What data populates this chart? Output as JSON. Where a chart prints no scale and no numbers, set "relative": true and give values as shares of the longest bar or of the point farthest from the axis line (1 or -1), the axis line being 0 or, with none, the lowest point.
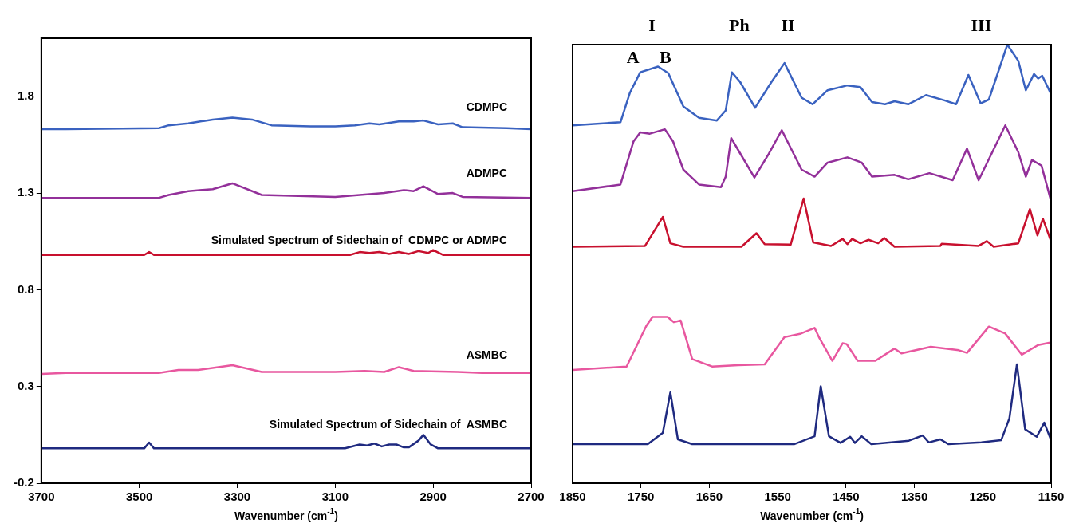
{
  "chart_data": [
    {
      "type": "line",
      "xlabel": "Wavenumber (cm$^{-1}$)",
      "xlim": [
        3700,
        2700
      ],
      "xticks": [
        3700,
        3500,
        3300,
        3100,
        2900,
        2700
      ],
      "ylim": [
        -0.2,
        2.1
      ],
      "yticks": [
        -0.2,
        0.3,
        0.8,
        1.3,
        1.8
      ],
      "grid": false,
      "marker": "none",
      "line_style": "solid",
      "series": [
        {
          "name": "CDMPC",
          "color": "#3a62c0",
          "x": [
            3700,
            3650,
            3460,
            3440,
            3400,
            3350,
            3310,
            3270,
            3230,
            3150,
            3100,
            3060,
            3030,
            3010,
            2970,
            2940,
            2920,
            2890,
            2860,
            2840,
            2750,
            2700
          ],
          "values": [
            1.63,
            1.63,
            1.635,
            1.65,
            1.66,
            1.68,
            1.69,
            1.68,
            1.65,
            1.645,
            1.645,
            1.65,
            1.66,
            1.655,
            1.67,
            1.67,
            1.675,
            1.655,
            1.66,
            1.64,
            1.635,
            1.63
          ]
        },
        {
          "name": "ADMPC",
          "color": "#93309a",
          "x": [
            3700,
            3460,
            3440,
            3400,
            3350,
            3310,
            3250,
            3100,
            3050,
            3000,
            2960,
            2940,
            2920,
            2890,
            2860,
            2840,
            2700
          ],
          "values": [
            1.275,
            1.275,
            1.29,
            1.31,
            1.32,
            1.35,
            1.29,
            1.28,
            1.29,
            1.3,
            1.315,
            1.31,
            1.335,
            1.295,
            1.3,
            1.28,
            1.275
          ]
        },
        {
          "name": "Simulated Spectrum of Sidechain of  CDMPC or ADMPC",
          "color": "#c8102e",
          "x": [
            3700,
            3490,
            3480,
            3470,
            3070,
            3050,
            3030,
            3010,
            2990,
            2970,
            2950,
            2930,
            2910,
            2900,
            2880,
            2700
          ],
          "values": [
            0.98,
            0.98,
            0.995,
            0.98,
            0.98,
            0.995,
            0.99,
            0.995,
            0.985,
            0.995,
            0.985,
            1.0,
            0.99,
            1.005,
            0.98,
            0.98
          ]
        },
        {
          "name": "ASMBC",
          "color": "#e8579f",
          "x": [
            3700,
            3650,
            3460,
            3420,
            3380,
            3310,
            3250,
            3100,
            3040,
            3000,
            2970,
            2940,
            2850,
            2800,
            2700
          ],
          "values": [
            0.365,
            0.37,
            0.37,
            0.385,
            0.385,
            0.41,
            0.375,
            0.375,
            0.38,
            0.375,
            0.4,
            0.38,
            0.375,
            0.37,
            0.37
          ]
        },
        {
          "name": "Simulated Spectrum of Sidechain of  ASMBC",
          "color": "#1f2a80",
          "x": [
            3700,
            3490,
            3480,
            3470,
            3080,
            3050,
            3035,
            3020,
            3005,
            2990,
            2975,
            2960,
            2950,
            2930,
            2920,
            2905,
            2890,
            2700
          ],
          "values": [
            -0.02,
            -0.02,
            0.01,
            -0.02,
            -0.02,
            0.0,
            -0.005,
            0.005,
            -0.01,
            0.0,
            0.0,
            -0.015,
            -0.015,
            0.02,
            0.05,
            0.0,
            -0.02,
            -0.02
          ]
        }
      ]
    },
    {
      "type": "line",
      "xlabel": "Wavenumber (cm$^{-1}$)",
      "xlim": [
        1850,
        1150
      ],
      "xticks": [
        1850,
        1750,
        1650,
        1550,
        1450,
        1350,
        1250,
        1150
      ],
      "relative": true,
      "tick_labels": "x",
      "grid": false,
      "marker": "none",
      "line_style": "solid",
      "annotations": [
        "I",
        "Ph",
        "II",
        "III",
        "A",
        "B"
      ],
      "series": [
        {
          "color": "#3a62c0",
          "x": [
            1850,
            1780,
            1766,
            1751,
            1725,
            1710,
            1688,
            1665,
            1639,
            1626,
            1617,
            1605,
            1583,
            1559,
            1540,
            1515,
            1499,
            1477,
            1448,
            1429,
            1412,
            1393,
            1379,
            1359,
            1333,
            1306,
            1289,
            1271,
            1253,
            1241,
            1214,
            1198,
            1187,
            1175,
            1169,
            1163,
            1150
          ],
          "values": [
            0.816,
            0.823,
            0.891,
            0.937,
            0.95,
            0.935,
            0.859,
            0.833,
            0.827,
            0.85,
            0.937,
            0.915,
            0.856,
            0.915,
            0.958,
            0.879,
            0.864,
            0.896,
            0.907,
            0.903,
            0.869,
            0.864,
            0.871,
            0.864,
            0.885,
            0.873,
            0.864,
            0.931,
            0.866,
            0.875,
            1.0,
            0.963,
            0.896,
            0.933,
            0.923,
            0.929,
            0.887
          ]
        },
        {
          "color": "#93309a",
          "x": [
            1850,
            1780,
            1761,
            1751,
            1737,
            1715,
            1703,
            1688,
            1665,
            1633,
            1626,
            1618,
            1606,
            1584,
            1563,
            1544,
            1515,
            1496,
            1477,
            1448,
            1427,
            1412,
            1379,
            1359,
            1328,
            1294,
            1273,
            1256,
            1217,
            1198,
            1187,
            1178,
            1164,
            1150
          ],
          "values": [
            0.666,
            0.681,
            0.779,
            0.8,
            0.797,
            0.807,
            0.779,
            0.715,
            0.681,
            0.675,
            0.699,
            0.787,
            0.755,
            0.697,
            0.751,
            0.805,
            0.715,
            0.699,
            0.731,
            0.743,
            0.731,
            0.699,
            0.703,
            0.693,
            0.707,
            0.691,
            0.763,
            0.691,
            0.816,
            0.755,
            0.699,
            0.737,
            0.724,
            0.643
          ]
        },
        {
          "color": "#c8102e",
          "x": [
            1850,
            1744,
            1718,
            1707,
            1688,
            1603,
            1581,
            1569,
            1531,
            1512,
            1498,
            1472,
            1455,
            1448,
            1441,
            1429,
            1417,
            1403,
            1394,
            1379,
            1312,
            1310,
            1256,
            1244,
            1234,
            1198,
            1181,
            1170,
            1162,
            1150
          ],
          "values": [
            0.539,
            0.541,
            0.607,
            0.547,
            0.539,
            0.539,
            0.57,
            0.545,
            0.544,
            0.649,
            0.549,
            0.541,
            0.557,
            0.545,
            0.557,
            0.547,
            0.555,
            0.547,
            0.559,
            0.539,
            0.541,
            0.546,
            0.541,
            0.552,
            0.539,
            0.547,
            0.625,
            0.565,
            0.603,
            0.551
          ]
        },
        {
          "color": "#e8579f",
          "x": [
            1850,
            1771,
            1742,
            1733,
            1711,
            1702,
            1692,
            1675,
            1646,
            1608,
            1569,
            1540,
            1516,
            1496,
            1489,
            1470,
            1455,
            1449,
            1433,
            1407,
            1379,
            1369,
            1326,
            1285,
            1273,
            1241,
            1217,
            1193,
            1169,
            1150
          ],
          "values": [
            0.258,
            0.266,
            0.359,
            0.379,
            0.379,
            0.367,
            0.371,
            0.283,
            0.266,
            0.269,
            0.271,
            0.333,
            0.341,
            0.354,
            0.331,
            0.279,
            0.319,
            0.317,
            0.279,
            0.279,
            0.307,
            0.296,
            0.311,
            0.303,
            0.297,
            0.357,
            0.341,
            0.293,
            0.315,
            0.321
          ]
        },
        {
          "color": "#1f2a80",
          "x": [
            1850,
            1740,
            1718,
            1707,
            1696,
            1675,
            1526,
            1496,
            1487,
            1475,
            1458,
            1444,
            1437,
            1427,
            1413,
            1358,
            1338,
            1329,
            1312,
            1300,
            1252,
            1223,
            1211,
            1200,
            1188,
            1171,
            1160,
            1150
          ],
          "values": [
            0.089,
            0.089,
            0.115,
            0.207,
            0.1,
            0.089,
            0.089,
            0.107,
            0.221,
            0.107,
            0.092,
            0.106,
            0.092,
            0.107,
            0.089,
            0.097,
            0.109,
            0.093,
            0.1,
            0.089,
            0.093,
            0.098,
            0.148,
            0.271,
            0.123,
            0.106,
            0.138,
            0.098
          ]
        }
      ]
    }
  ]
}
